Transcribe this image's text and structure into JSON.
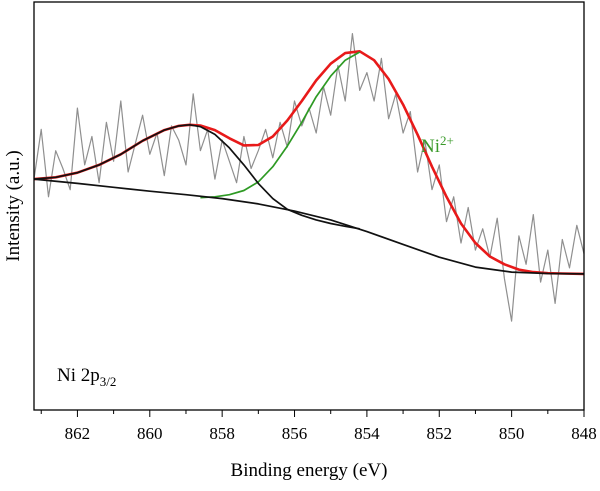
{
  "chart_data": {
    "type": "line",
    "xlabel": "Binding energy (eV)",
    "ylabel": "Intensity (a.u.)",
    "xlim": [
      863.2,
      848
    ],
    "ylim": [
      0,
      1
    ],
    "x_reversed": true,
    "x_ticks": [
      862,
      860,
      858,
      856,
      854,
      852,
      850,
      848
    ],
    "y_ticks_shown": false,
    "grid": false,
    "annotations": {
      "species": "Ni",
      "species_sup": "2+",
      "species_color": "#3a9a2a",
      "core_level_main": "Ni 2p",
      "core_level_sub": "3/2"
    },
    "series": [
      {
        "role": "raw",
        "color": "#8f8f8f",
        "x": [
          863.2,
          863.0,
          862.8,
          862.6,
          862.4,
          862.2,
          862.0,
          861.8,
          861.6,
          861.4,
          861.2,
          861.0,
          860.8,
          860.6,
          860.4,
          860.2,
          860.0,
          859.8,
          859.6,
          859.4,
          859.2,
          859.0,
          858.8,
          858.6,
          858.4,
          858.2,
          858.0,
          857.8,
          857.6,
          857.4,
          857.2,
          857.0,
          856.8,
          856.6,
          856.4,
          856.2,
          856.0,
          855.8,
          855.6,
          855.4,
          855.2,
          855.0,
          854.8,
          854.6,
          854.4,
          854.2,
          854.0,
          853.8,
          853.6,
          853.4,
          853.2,
          853.0,
          852.8,
          852.6,
          852.4,
          852.2,
          852.0,
          851.8,
          851.6,
          851.4,
          851.2,
          851.0,
          850.8,
          850.6,
          850.4,
          850.2,
          850.0,
          849.8,
          849.6,
          849.4,
          849.2,
          849.0,
          848.8,
          848.6,
          848.4,
          848.2,
          848.0
        ],
        "y": [
          0.58,
          0.72,
          0.53,
          0.66,
          0.61,
          0.55,
          0.78,
          0.62,
          0.7,
          0.57,
          0.74,
          0.63,
          0.8,
          0.6,
          0.68,
          0.76,
          0.65,
          0.71,
          0.59,
          0.73,
          0.69,
          0.62,
          0.82,
          0.66,
          0.72,
          0.58,
          0.69,
          0.63,
          0.57,
          0.7,
          0.61,
          0.66,
          0.72,
          0.64,
          0.74,
          0.67,
          0.8,
          0.73,
          0.78,
          0.71,
          0.84,
          0.76,
          0.9,
          0.8,
          0.99,
          0.83,
          0.88,
          0.8,
          0.92,
          0.75,
          0.82,
          0.71,
          0.77,
          0.6,
          0.69,
          0.55,
          0.62,
          0.46,
          0.53,
          0.4,
          0.5,
          0.38,
          0.44,
          0.36,
          0.47,
          0.3,
          0.18,
          0.42,
          0.34,
          0.48,
          0.29,
          0.38,
          0.23,
          0.41,
          0.33,
          0.45,
          0.37
        ]
      },
      {
        "role": "envelope",
        "color": "#e81a1a",
        "x": [
          863.2,
          862.6,
          862.0,
          861.4,
          860.8,
          860.2,
          859.6,
          859.2,
          858.9,
          858.6,
          858.2,
          857.8,
          857.4,
          857.0,
          856.6,
          856.2,
          855.8,
          855.4,
          855.0,
          854.6,
          854.2,
          853.8,
          853.4,
          853.0,
          852.6,
          852.2,
          851.8,
          851.4,
          851.0,
          850.6,
          850.2,
          849.8,
          849.4,
          849.0,
          848.6,
          848.0
        ],
        "y": [
          0.58,
          0.585,
          0.598,
          0.62,
          0.65,
          0.688,
          0.718,
          0.73,
          0.733,
          0.731,
          0.718,
          0.695,
          0.675,
          0.676,
          0.7,
          0.745,
          0.8,
          0.858,
          0.905,
          0.935,
          0.94,
          0.915,
          0.862,
          0.79,
          0.705,
          0.615,
          0.53,
          0.455,
          0.4,
          0.362,
          0.34,
          0.325,
          0.318,
          0.315,
          0.314,
          0.313
        ]
      },
      {
        "role": "component",
        "name": "Ni2+",
        "color": "#2e9a24",
        "x": [
          858.6,
          858.2,
          857.8,
          857.4,
          857.0,
          856.6,
          856.2,
          855.8,
          855.4,
          855.0,
          854.6,
          854.2
        ],
        "y": [
          0.528,
          0.53,
          0.536,
          0.548,
          0.572,
          0.615,
          0.673,
          0.74,
          0.812,
          0.87,
          0.915,
          0.938
        ]
      },
      {
        "role": "component",
        "color": "#111111",
        "x": [
          863.2,
          862.6,
          862.0,
          861.4,
          860.8,
          860.2,
          859.6,
          859.2,
          858.9,
          858.6,
          858.2,
          857.8,
          857.4,
          857.0,
          856.6,
          856.2,
          855.8,
          855.4,
          855.0,
          854.6,
          854.2
        ],
        "y": [
          0.58,
          0.585,
          0.598,
          0.62,
          0.65,
          0.688,
          0.718,
          0.73,
          0.733,
          0.728,
          0.706,
          0.668,
          0.62,
          0.568,
          0.525,
          0.495,
          0.478,
          0.465,
          0.455,
          0.447,
          0.44
        ]
      },
      {
        "role": "background",
        "color": "#111111",
        "x": [
          863.2,
          862.0,
          861.0,
          860.0,
          859.0,
          858.0,
          857.0,
          856.0,
          855.0,
          854.0,
          853.0,
          852.0,
          851.0,
          850.0,
          849.0,
          848.0
        ],
        "y": [
          0.58,
          0.568,
          0.557,
          0.546,
          0.536,
          0.525,
          0.51,
          0.49,
          0.465,
          0.432,
          0.396,
          0.36,
          0.332,
          0.318,
          0.314,
          0.313
        ]
      }
    ]
  }
}
